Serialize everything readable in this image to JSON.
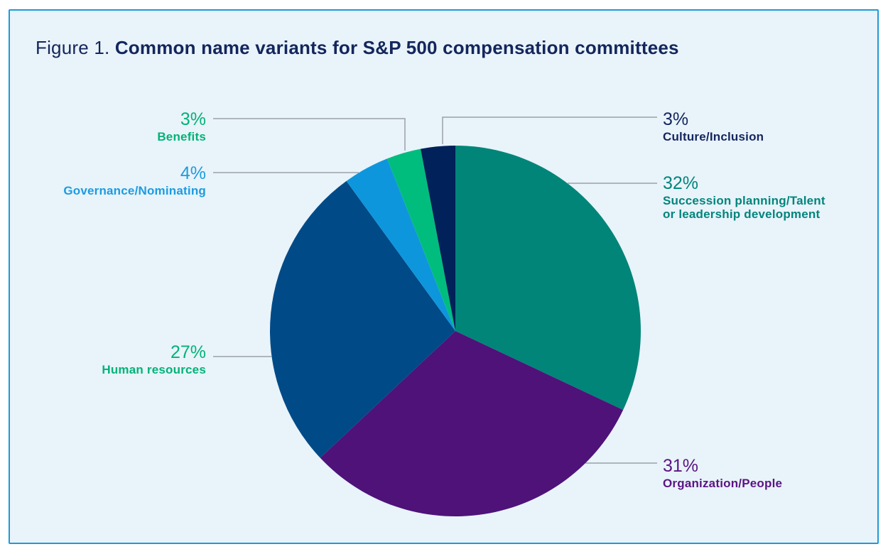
{
  "figure": {
    "title_prefix": "Figure 1. ",
    "title": "Common name variants for S&P 500 compensation committees"
  },
  "colors": {
    "card_background": "#E9F3FA",
    "card_border": "#1E9BD7",
    "title_text": "#13265C",
    "leader_line": "#9AA1A7"
  },
  "chart_data": {
    "type": "pie",
    "title": "Common name variants for S&P 500 compensation committees",
    "direction": "clockwise",
    "start_angle_deg": 0,
    "legend_position": "callout-labels",
    "slices": [
      {
        "label": "Succession planning/Talent\nor leadership development",
        "pct_label": "32%",
        "value": 32,
        "color": "#008578",
        "text_color": "#00857C"
      },
      {
        "label": "Organization/People",
        "pct_label": "31%",
        "value": 31,
        "color": "#4E1279",
        "text_color": "#5A1582"
      },
      {
        "label": "Human resources",
        "pct_label": "27%",
        "value": 27,
        "color": "#004A87",
        "text_color": "#00B377"
      },
      {
        "label": "Governance/Nominating",
        "pct_label": "4%",
        "value": 4,
        "color": "#0E96DC",
        "text_color": "#1B9CE1"
      },
      {
        "label": "Benefits",
        "pct_label": "3%",
        "value": 3,
        "color": "#00BD7E",
        "text_color": "#00B377"
      },
      {
        "label": "Culture/Inclusion",
        "pct_label": "3%",
        "value": 3,
        "color": "#002159",
        "text_color": "#14265E"
      }
    ]
  }
}
